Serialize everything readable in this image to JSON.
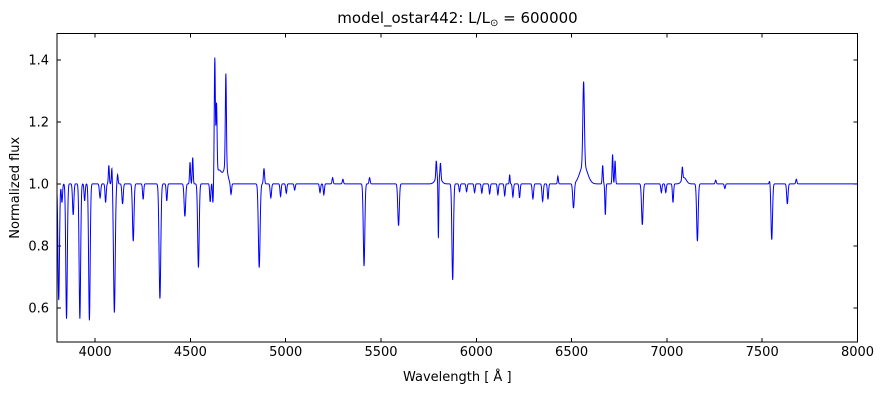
{
  "figure": {
    "title": {
      "prefix": "model_ostar442: L/L",
      "solar_symbol": "⊙",
      "suffix": " = 600000"
    },
    "xlabel": "Wavelength [ Å ]",
    "ylabel": "Normalized flux",
    "line_color": "#0000ff",
    "axis_color": "#000000",
    "background_color": "#ffffff"
  },
  "chart_data": {
    "type": "line",
    "title": "model_ostar442: L/L⊙ = 600000",
    "xlabel": "Wavelength [ Å ]",
    "ylabel": "Normalized flux",
    "xlim": [
      3800,
      8000
    ],
    "ylim": [
      0.49,
      1.485
    ],
    "xticks": [
      4000,
      4500,
      5000,
      5500,
      6000,
      6500,
      7000,
      7500,
      8000
    ],
    "yticks": [
      "0.6",
      "0.8",
      "1.0",
      "1.2",
      "1.4"
    ],
    "grid": false,
    "legend": null,
    "tick_style": "inward, mirrored on all four sides",
    "continuum_flux": 1.0,
    "series_description": "Model O-star normalized spectrum: continuum at 1.0 with gaussian absorption and emission lines",
    "absorption_lines": {
      "columns": [
        "wavelength_A",
        "min_flux",
        "sigma_A"
      ],
      "rows": [
        [
          3809,
          0.625,
          4.0
        ],
        [
          3826,
          0.94,
          3.0
        ],
        [
          3850,
          0.565,
          4.0
        ],
        [
          3885,
          0.9,
          3.5
        ],
        [
          3920,
          0.565,
          4.0
        ],
        [
          3945,
          0.945,
          3.0
        ],
        [
          3970,
          0.56,
          4.0
        ],
        [
          4026,
          0.955,
          3.5
        ],
        [
          4055,
          0.94,
          3.0
        ],
        [
          4101,
          0.585,
          4.5
        ],
        [
          4144,
          0.935,
          3.5
        ],
        [
          4200,
          0.815,
          4.0
        ],
        [
          4252,
          0.95,
          3.0
        ],
        [
          4340,
          0.63,
          4.5
        ],
        [
          4376,
          0.945,
          3.0
        ],
        [
          4471,
          0.895,
          4.0
        ],
        [
          4542,
          0.73,
          4.0
        ],
        [
          4604,
          0.94,
          3.0
        ],
        [
          4618,
          0.93,
          2.5
        ],
        [
          4713,
          0.965,
          3.0
        ],
        [
          4861,
          0.73,
          4.5
        ],
        [
          4922,
          0.955,
          3.5
        ],
        [
          4973,
          0.96,
          3.0
        ],
        [
          5003,
          0.97,
          3.0
        ],
        [
          5047,
          0.98,
          3.0
        ],
        [
          5180,
          0.972,
          3.0
        ],
        [
          5200,
          0.965,
          3.0
        ],
        [
          5411,
          0.735,
          4.0
        ],
        [
          5592,
          0.865,
          4.0
        ],
        [
          5801,
          0.8,
          2.0
        ],
        [
          5876,
          0.69,
          4.0
        ],
        [
          5912,
          0.975,
          3.0
        ],
        [
          5949,
          0.975,
          3.0
        ],
        [
          5991,
          0.972,
          3.0
        ],
        [
          6029,
          0.97,
          3.0
        ],
        [
          6070,
          0.968,
          3.0
        ],
        [
          6113,
          0.965,
          3.0
        ],
        [
          6149,
          0.962,
          3.0
        ],
        [
          6192,
          0.958,
          3.0
        ],
        [
          6227,
          0.955,
          3.0
        ],
        [
          6297,
          0.952,
          3.5
        ],
        [
          6348,
          0.944,
          3.5
        ],
        [
          6376,
          0.95,
          3.0
        ],
        [
          6510,
          0.92,
          4.0
        ],
        [
          6677,
          0.9,
          2.5
        ],
        [
          6871,
          0.868,
          4.0
        ],
        [
          6971,
          0.972,
          3.0
        ],
        [
          6994,
          0.972,
          3.0
        ],
        [
          7032,
          0.94,
          3.0
        ],
        [
          7160,
          0.815,
          4.0
        ],
        [
          7304,
          0.985,
          3.0
        ],
        [
          7550,
          0.82,
          4.0
        ],
        [
          7632,
          0.935,
          3.5
        ]
      ]
    },
    "emission_lines": {
      "columns": [
        "wavelength_A",
        "peak_flux",
        "sigma_A"
      ],
      "rows": [
        [
          4072,
          1.06,
          2.5
        ],
        [
          4088,
          1.055,
          2.5
        ],
        [
          4118,
          1.03,
          2.5
        ],
        [
          4498,
          1.07,
          2.5
        ],
        [
          4512,
          1.085,
          2.5
        ],
        [
          4628,
          1.385,
          2.8
        ],
        [
          4637,
          1.225,
          2.8
        ],
        [
          4650,
          1.045,
          18.0
        ],
        [
          4686,
          1.3,
          2.8
        ],
        [
          4686,
          1.05,
          10.0
        ],
        [
          4886,
          1.05,
          3.0
        ],
        [
          5246,
          1.02,
          3.0
        ],
        [
          5300,
          1.015,
          3.0
        ],
        [
          5440,
          1.02,
          3.0
        ],
        [
          5790,
          1.055,
          2.5
        ],
        [
          5800,
          1.025,
          14.0
        ],
        [
          5812,
          1.05,
          2.5
        ],
        [
          6175,
          1.03,
          2.0
        ],
        [
          6428,
          1.025,
          2.5
        ],
        [
          6563,
          1.27,
          4.0
        ],
        [
          6563,
          1.06,
          20.0
        ],
        [
          6663,
          1.06,
          2.5
        ],
        [
          6715,
          1.095,
          2.5
        ],
        [
          6728,
          1.075,
          2.5
        ],
        [
          7081,
          1.04,
          2.5
        ],
        [
          7090,
          1.02,
          12.0
        ],
        [
          7256,
          1.012,
          3.0
        ],
        [
          7540,
          1.012,
          3.0
        ],
        [
          7679,
          1.015,
          3.0
        ]
      ]
    }
  }
}
